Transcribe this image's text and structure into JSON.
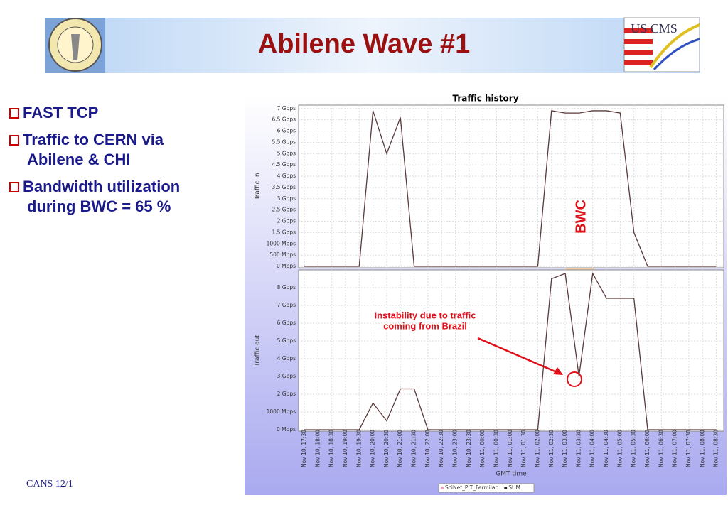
{
  "slide": {
    "title": "Abilene Wave #1",
    "logo_right": "US CMS",
    "bullets": [
      [
        "FAST TCP"
      ],
      [
        "Traffic to CERN via",
        "Abilene & CHI"
      ],
      [
        "Bandwidth utilization",
        "during BWC = 65 %"
      ]
    ],
    "footer": "CANS 12/1"
  },
  "chart_data": [
    {
      "type": "line",
      "title": "Traffic history",
      "ylabel": "Traffic in",
      "series": [
        {
          "name": "SUM",
          "color": "#5a3a3a",
          "values": [
            0,
            0,
            0,
            0,
            0,
            6.9,
            5,
            6.6,
            0,
            0,
            0,
            0,
            0,
            0,
            0,
            0,
            0,
            0,
            6.9,
            6.8,
            6.8,
            6.9,
            6.9,
            6.8,
            1.5,
            0,
            0,
            0,
            0,
            0,
            0
          ]
        }
      ],
      "ylim": [
        0,
        7.15
      ],
      "yticks": [
        {
          "value": 0,
          "label": "0 Mbps"
        },
        {
          "value": 0.5,
          "label": "500 Mbps"
        },
        {
          "value": 1,
          "label": "1000 Mbps"
        },
        {
          "value": 1.5,
          "label": "1.5 Gbps"
        },
        {
          "value": 2,
          "label": "2 Gbps"
        },
        {
          "value": 2.5,
          "label": "2.5 Gbps"
        },
        {
          "value": 3,
          "label": "3 Gbps"
        },
        {
          "value": 3.5,
          "label": "3.5 Gbps"
        },
        {
          "value": 4,
          "label": "4 Gbps"
        },
        {
          "value": 4.5,
          "label": "4.5 Gbps"
        },
        {
          "value": 5,
          "label": "5 Gbps"
        },
        {
          "value": 5.5,
          "label": "5.5 Gbps"
        },
        {
          "value": 6,
          "label": "6 Gbps"
        },
        {
          "value": 6.5,
          "label": "6.5 Gbps"
        },
        {
          "value": 7,
          "label": "7 Gbps"
        }
      ],
      "grid": true,
      "band_label": "BWC"
    },
    {
      "type": "line",
      "ylabel": "Traffic out",
      "xlabel": "GMT time",
      "categories": [
        "Nov 10, 17:30",
        "Nov 10, 18:00",
        "Nov 10, 18:30",
        "Nov 10, 19:00",
        "Nov 10, 19:30",
        "Nov 10, 20:00",
        "Nov 10, 20:30",
        "Nov 10, 21:00",
        "Nov 10, 21:30",
        "Nov 10, 22:00",
        "Nov 10, 22:30",
        "Nov 10, 23:00",
        "Nov 10, 23:30",
        "Nov 11, 00:00",
        "Nov 11, 00:30",
        "Nov 11, 01:00",
        "Nov 11, 01:30",
        "Nov 11, 02:00",
        "Nov 11, 02:30",
        "Nov 11, 03:00",
        "Nov 11, 03:30",
        "Nov 11, 04:00",
        "Nov 11, 04:30",
        "Nov 11, 05:00",
        "Nov 11, 05:30",
        "Nov 11, 06:00",
        "Nov 11, 06:30",
        "Nov 11, 07:00",
        "Nov 11, 07:30",
        "Nov 11, 08:00",
        "Nov 11, 08:30"
      ],
      "series": [
        {
          "name": "SUM",
          "color": "#5a3a3a",
          "values": [
            0,
            0,
            0,
            0,
            0,
            1.5,
            0.5,
            2.3,
            2.3,
            0,
            0,
            0,
            0,
            0,
            0,
            0,
            0,
            0,
            8.5,
            8.8,
            3,
            8.8,
            7.4,
            7.4,
            7.4,
            0,
            0,
            0,
            0,
            0,
            0
          ]
        }
      ],
      "legend": [
        {
          "name": "SciNet_PIT_Fermilab",
          "color": "#f0a0b8"
        },
        {
          "name": "SUM",
          "color": "#222222"
        }
      ],
      "ylim": [
        0,
        9
      ],
      "yticks": [
        {
          "value": 0,
          "label": "0 Mbps"
        },
        {
          "value": 1,
          "label": "1000 Mbps"
        },
        {
          "value": 2,
          "label": "2 Gbps"
        },
        {
          "value": 3,
          "label": "3 Gbps"
        },
        {
          "value": 4,
          "label": "4 Gbps"
        },
        {
          "value": 5,
          "label": "5 Gbps"
        },
        {
          "value": 6,
          "label": "6 Gbps"
        },
        {
          "value": 7,
          "label": "7 Gbps"
        },
        {
          "value": 8,
          "label": "8 Gbps"
        }
      ],
      "grid": true,
      "annotation": [
        "Instability due to traffic",
        "coming from Brazil"
      ]
    }
  ]
}
